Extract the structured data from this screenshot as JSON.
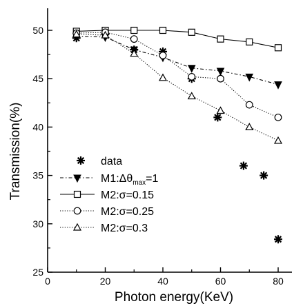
{
  "chart_data": {
    "type": "scatter",
    "title": "",
    "xlabel": "Photon energy(KeV)",
    "ylabel": "Transmission(%)",
    "xlim": [
      0,
      85
    ],
    "ylim": [
      25,
      52
    ],
    "xticks": [
      0,
      20,
      40,
      60,
      80
    ],
    "yticks": [
      25,
      30,
      35,
      40,
      45,
      50
    ],
    "x_tick_labels": [
      "0",
      "20",
      "40",
      "60",
      "80"
    ],
    "y_tick_labels": [
      "25",
      "30",
      "35",
      "40",
      "45",
      "50"
    ],
    "grid": false,
    "legend_position": "left-bottom",
    "series": [
      {
        "name": "data",
        "marker": "asterisk",
        "line": "none",
        "x": [
          10,
          20,
          30,
          40,
          50,
          59,
          68,
          75,
          80
        ],
        "y": [
          49.2,
          49.6,
          48.0,
          47.8,
          45.0,
          41.0,
          36.0,
          35.0,
          28.4
        ]
      },
      {
        "name": "M1:Δθmax=1",
        "marker": "triangle-down-filled",
        "line": "dash-dot",
        "x": [
          10,
          20,
          30,
          40,
          50,
          60,
          70,
          80
        ],
        "y": [
          49.4,
          49.3,
          48.0,
          47.2,
          46.1,
          45.8,
          45.2,
          44.4
        ]
      },
      {
        "name": "M2:σ=0.15",
        "marker": "square-open",
        "line": "solid",
        "x": [
          10,
          20,
          30,
          40,
          50,
          60,
          70,
          80
        ],
        "y": [
          49.9,
          50.0,
          50.0,
          50.0,
          49.8,
          49.1,
          48.8,
          48.2
        ]
      },
      {
        "name": "M2:σ=0.25",
        "marker": "circle-open",
        "line": "dotted",
        "x": [
          10,
          20,
          30,
          40,
          50,
          60,
          70,
          80
        ],
        "y": [
          49.7,
          49.8,
          49.1,
          47.4,
          45.2,
          45.0,
          42.3,
          41.0
        ]
      },
      {
        "name": "M2:σ=0.3",
        "marker": "triangle-up-open",
        "line": "dotted",
        "x": [
          10,
          20,
          30,
          40,
          50,
          60,
          70,
          80
        ],
        "y": [
          49.6,
          49.5,
          47.6,
          45.1,
          43.2,
          41.7,
          40.0,
          38.6
        ]
      }
    ]
  },
  "legend": {
    "items": [
      {
        "series": 0,
        "text": "data"
      },
      {
        "series": 1,
        "text": "M1:Δθ",
        "sub": "max",
        "suffix": "=1"
      },
      {
        "series": 2,
        "text": "M2:σ=0.15"
      },
      {
        "series": 3,
        "text": "M2:σ=0.25"
      },
      {
        "series": 4,
        "text": "M2:σ=0.3"
      }
    ]
  }
}
